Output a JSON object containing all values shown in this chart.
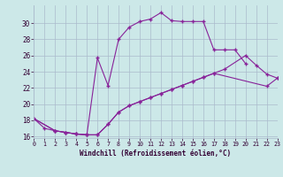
{
  "xlabel": "Windchill (Refroidissement éolien,°C)",
  "bg_color": "#cce8e8",
  "grid_color": "#aabbcc",
  "line_color": "#882299",
  "line1_x": [
    0,
    1,
    2,
    3,
    4,
    5,
    6,
    7,
    8,
    9,
    10,
    11,
    12,
    13,
    14,
    15,
    16,
    17,
    18,
    19,
    20
  ],
  "line1_y": [
    18.2,
    17.0,
    16.7,
    16.5,
    16.3,
    16.2,
    25.7,
    22.3,
    28.0,
    29.5,
    30.2,
    30.5,
    31.3,
    30.3,
    30.2,
    30.2,
    30.2,
    26.7,
    26.7,
    26.7,
    25.0
  ],
  "line2_x": [
    0,
    2,
    3,
    4,
    5,
    6,
    7,
    8,
    9,
    10,
    11,
    12,
    13,
    14,
    15,
    16,
    17,
    18,
    20,
    21,
    22,
    23
  ],
  "line2_y": [
    18.2,
    16.7,
    16.5,
    16.3,
    16.2,
    16.2,
    17.5,
    19.0,
    19.8,
    20.3,
    20.8,
    21.3,
    21.8,
    22.3,
    22.8,
    23.3,
    23.8,
    24.3,
    26.0,
    24.8,
    23.7,
    23.2
  ],
  "line3_x": [
    0,
    2,
    3,
    4,
    5,
    6,
    7,
    8,
    9,
    10,
    11,
    12,
    13,
    14,
    15,
    16,
    17,
    22,
    23
  ],
  "line3_y": [
    18.2,
    16.7,
    16.5,
    16.3,
    16.2,
    16.2,
    17.5,
    19.0,
    19.8,
    20.3,
    20.8,
    21.3,
    21.8,
    22.3,
    22.8,
    23.3,
    23.8,
    22.2,
    23.2
  ],
  "xlim": [
    0,
    23
  ],
  "ylim": [
    15.8,
    32.2
  ],
  "yticks": [
    16,
    18,
    20,
    22,
    24,
    26,
    28,
    30
  ],
  "xticks": [
    0,
    1,
    2,
    3,
    4,
    5,
    6,
    7,
    8,
    9,
    10,
    11,
    12,
    13,
    14,
    15,
    16,
    17,
    18,
    19,
    20,
    21,
    22,
    23
  ]
}
